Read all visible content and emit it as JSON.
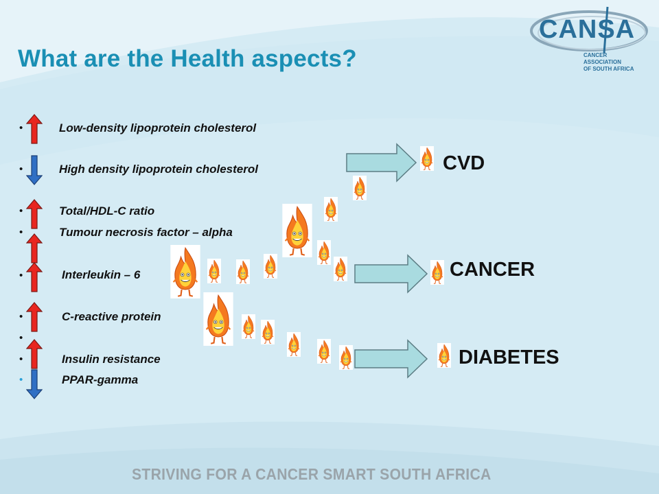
{
  "title": "What are the Health aspects?",
  "logo": {
    "name": "CANSA",
    "subtitle_line1": "CANCER ASSOCIATION",
    "subtitle_line2": "OF SOUTH AFRICA"
  },
  "items": [
    {
      "text": "Low-density lipoprotein cholesterol",
      "direction": "up"
    },
    {
      "text": "High density lipoprotein cholesterol",
      "direction": "down"
    },
    {
      "text": "Total/HDL-C ratio",
      "direction": "up"
    },
    {
      "text": "Tumour necrosis factor – alpha",
      "direction": "up"
    },
    {
      "text": "Interleukin – 6",
      "direction": "up"
    },
    {
      "text": "C-reactive protein",
      "direction": "up"
    },
    {
      "text": "Insulin resistance",
      "direction": "up"
    },
    {
      "text": "PPAR-gamma",
      "direction": "down"
    }
  ],
  "outcomes": [
    "CVD",
    "CANCER",
    "DIABETES"
  ],
  "footer": "STRIVING FOR A CANCER SMART SOUTH AFRICA",
  "icons": {
    "up": "red-up-arrow-icon",
    "down": "blue-down-arrow-icon",
    "flame": "flame-character-icon"
  },
  "colors": {
    "title": "#1a8fb4",
    "up_arrow": "#e8261f",
    "down_arrow": "#2f6fc4",
    "big_arrow": "#a9dbe0"
  }
}
